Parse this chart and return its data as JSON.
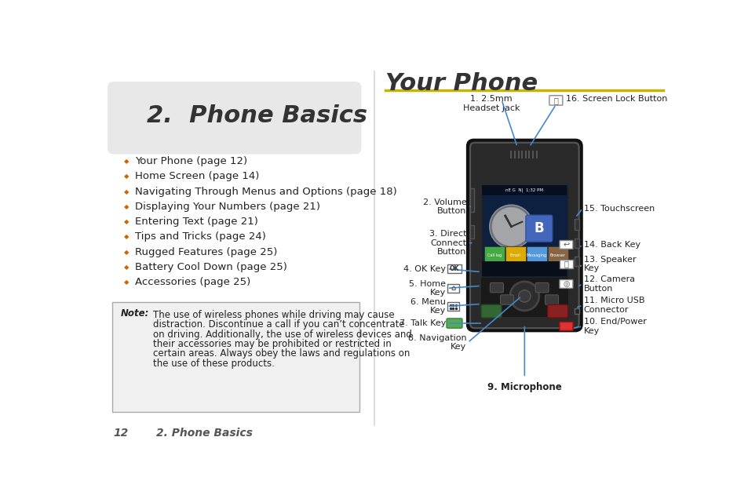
{
  "bg_color": "#ffffff",
  "left_panel": {
    "header_bg": "#e8e8e8",
    "header_text": "2.  Phone Basics",
    "header_font_size": 22,
    "bullet_items": [
      "Your Phone (page 12)",
      "Home Screen (page 14)",
      "Navigating Through Menus and Options (page 18)",
      "Displaying Your Numbers (page 21)",
      "Entering Text (page 21)",
      "Tips and Tricks (page 24)",
      "Rugged Features (page 25)",
      "Battery Cool Down (page 25)",
      "Accessories (page 25)"
    ],
    "bullet_font_size": 9.5,
    "note_label": "Note:",
    "note_lines": [
      "The use of wireless phones while driving may cause",
      "distraction. Discontinue a call if you can’t concentrate",
      "on driving. Additionally, the use of wireless devices and",
      "their accessories may be prohibited or restricted in",
      "certain areas. Always obey the laws and regulations on",
      "the use of these products."
    ],
    "note_font_size": 8.5
  },
  "right_panel": {
    "title": "Your Phone",
    "title_font_size": 22,
    "title_color": "#333333",
    "divider_color": "#c8b400"
  },
  "footer_page": "12",
  "footer_text": "2. Phone Basics",
  "footer_font_size": 10
}
